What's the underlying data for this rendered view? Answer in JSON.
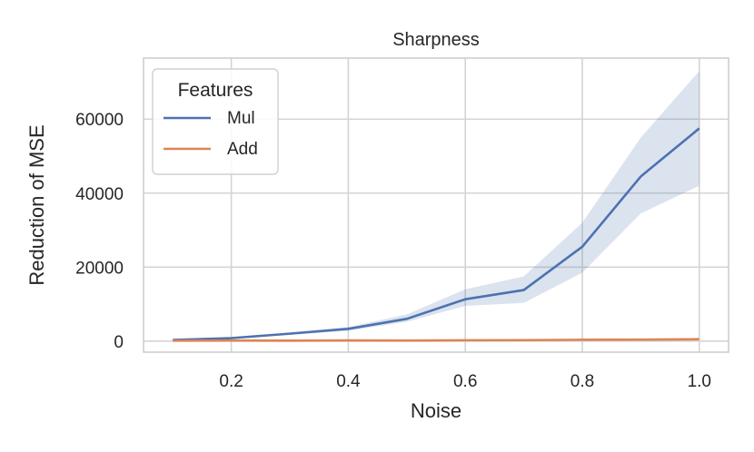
{
  "chart_data": {
    "type": "line",
    "title": "Sharpness",
    "xlabel": "Noise",
    "ylabel": "Reduction of MSE",
    "xlim": [
      0.05,
      1.05
    ],
    "ylim": [
      -3000,
      76500
    ],
    "xticks": [
      0.2,
      0.4,
      0.6,
      0.8,
      1.0
    ],
    "xtick_labels": [
      "0.2",
      "0.4",
      "0.6",
      "0.8",
      "1.0"
    ],
    "yticks": [
      0,
      20000,
      40000,
      60000
    ],
    "ytick_labels": [
      "0",
      "20000",
      "40000",
      "60000"
    ],
    "grid": true,
    "legend": {
      "title": "Features",
      "position": "top-left"
    },
    "x": [
      0.1,
      0.2,
      0.3,
      0.4,
      0.5,
      0.6,
      0.7,
      0.8,
      0.9,
      1.0
    ],
    "series": [
      {
        "name": "Mul",
        "color": "#4c72b0",
        "values": [
          300,
          800,
          2000,
          3300,
          6000,
          11300,
          13800,
          25500,
          44500,
          57500
        ],
        "ci_lower": [
          200,
          600,
          1700,
          2800,
          5200,
          9500,
          10300,
          18500,
          34500,
          42000
        ],
        "ci_upper": [
          400,
          1000,
          2300,
          3800,
          7200,
          14000,
          17500,
          32000,
          55000,
          73000
        ]
      },
      {
        "name": "Add",
        "color": "#dd8452",
        "values": [
          100,
          150,
          120,
          180,
          150,
          220,
          250,
          350,
          400,
          500
        ],
        "ci_lower": [
          50,
          100,
          80,
          120,
          100,
          150,
          180,
          250,
          300,
          350
        ],
        "ci_upper": [
          150,
          200,
          160,
          240,
          200,
          290,
          320,
          450,
          500,
          650
        ]
      }
    ]
  }
}
